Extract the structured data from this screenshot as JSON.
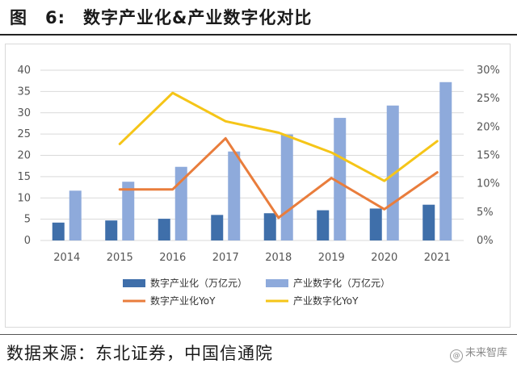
{
  "figure": {
    "title": "图　6:　数字产业化&产业数字化对比",
    "source": "数据来源：东北证券，中国信通院",
    "watermark": "未来智库",
    "watermark_icon": "@"
  },
  "colors": {
    "dark_bar": "#3f6faa",
    "light_bar": "#8eaadb",
    "orange_line": "#e97d3c",
    "yellow_line": "#f5c518",
    "grid": "#d9d9d9"
  },
  "chart_data": {
    "type": "bar",
    "title": "",
    "xlabel": "",
    "ylabel": "",
    "categories": [
      "2014",
      "2015",
      "2016",
      "2017",
      "2018",
      "2019",
      "2020",
      "2021"
    ],
    "ylim": [
      0,
      40
    ],
    "yticks": [
      "0",
      "5",
      "10",
      "15",
      "20",
      "25",
      "30",
      "35",
      "40"
    ],
    "y2lim": [
      0,
      0.3
    ],
    "y2ticks": [
      "0%",
      "5%",
      "10%",
      "15%",
      "20%",
      "25%",
      "30%"
    ],
    "series": [
      {
        "name": "数字产业化（万亿元）",
        "type": "bar",
        "axis": "left",
        "values": [
          4.2,
          4.7,
          5.1,
          6.0,
          6.4,
          7.1,
          7.5,
          8.4
        ]
      },
      {
        "name": "产业数字化（万亿元）",
        "type": "bar",
        "axis": "left",
        "values": [
          11.7,
          13.8,
          17.3,
          20.9,
          24.9,
          28.8,
          31.7,
          37.2
        ]
      },
      {
        "name": "数字产业化YoY",
        "type": "line",
        "axis": "right",
        "values": [
          null,
          0.09,
          0.09,
          0.18,
          0.04,
          0.11,
          0.055,
          0.12
        ]
      },
      {
        "name": "产业数字化YoY",
        "type": "line",
        "axis": "right",
        "values": [
          null,
          0.17,
          0.26,
          0.21,
          0.19,
          0.155,
          0.105,
          0.175
        ]
      }
    ],
    "legend": "bottom"
  }
}
